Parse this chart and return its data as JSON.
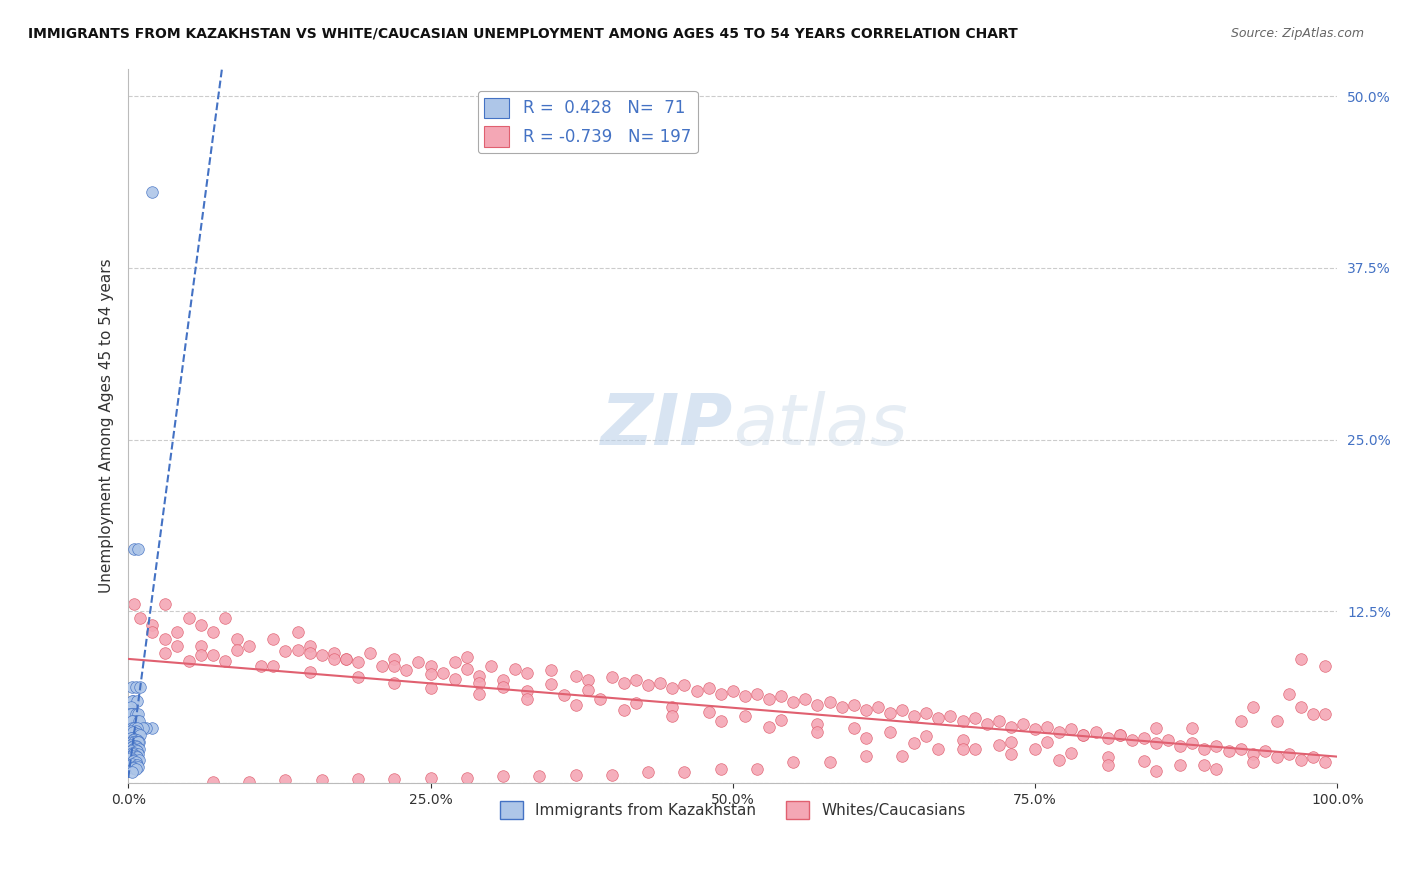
{
  "title": "IMMIGRANTS FROM KAZAKHSTAN VS WHITE/CAUCASIAN UNEMPLOYMENT AMONG AGES 45 TO 54 YEARS CORRELATION CHART",
  "source": "Source: ZipAtlas.com",
  "ylabel": "Unemployment Among Ages 45 to 54 years",
  "xlim": [
    0.0,
    1.0
  ],
  "ylim": [
    0.0,
    0.52
  ],
  "yticks": [
    0.0,
    0.125,
    0.25,
    0.375,
    0.5
  ],
  "xticks": [
    0.0,
    0.25,
    0.5,
    0.75,
    1.0
  ],
  "blue_scatter_x": [
    0.02,
    0.005,
    0.008,
    0.003,
    0.006,
    0.01,
    0.004,
    0.003,
    0.007,
    0.002,
    0.001,
    0.005,
    0.003,
    0.002,
    0.006,
    0.008,
    0.004,
    0.007,
    0.003,
    0.009,
    0.02,
    0.015,
    0.012,
    0.003,
    0.005,
    0.007,
    0.002,
    0.006,
    0.004,
    0.008,
    0.01,
    0.003,
    0.002,
    0.005,
    0.007,
    0.004,
    0.006,
    0.009,
    0.003,
    0.005,
    0.008,
    0.002,
    0.004,
    0.006,
    0.003,
    0.007,
    0.005,
    0.009,
    0.004,
    0.006,
    0.002,
    0.007,
    0.003,
    0.005,
    0.008,
    0.004,
    0.006,
    0.003,
    0.007,
    0.002,
    0.005,
    0.009,
    0.004,
    0.006,
    0.003,
    0.007,
    0.005,
    0.008,
    0.004,
    0.006,
    0.003
  ],
  "blue_scatter_y": [
    0.43,
    0.17,
    0.17,
    0.07,
    0.07,
    0.07,
    0.06,
    0.06,
    0.06,
    0.055,
    0.05,
    0.05,
    0.05,
    0.05,
    0.05,
    0.05,
    0.045,
    0.045,
    0.045,
    0.045,
    0.04,
    0.04,
    0.04,
    0.04,
    0.04,
    0.04,
    0.038,
    0.038,
    0.037,
    0.036,
    0.035,
    0.033,
    0.033,
    0.032,
    0.031,
    0.031,
    0.03,
    0.03,
    0.03,
    0.03,
    0.03,
    0.028,
    0.027,
    0.027,
    0.026,
    0.026,
    0.025,
    0.025,
    0.025,
    0.024,
    0.023,
    0.023,
    0.022,
    0.022,
    0.021,
    0.021,
    0.02,
    0.02,
    0.019,
    0.018,
    0.017,
    0.017,
    0.016,
    0.015,
    0.014,
    0.013,
    0.012,
    0.012,
    0.011,
    0.01,
    0.008
  ],
  "pink_scatter_x": [
    0.005,
    0.01,
    0.02,
    0.03,
    0.04,
    0.05,
    0.06,
    0.07,
    0.08,
    0.09,
    0.1,
    0.12,
    0.14,
    0.15,
    0.17,
    0.18,
    0.2,
    0.22,
    0.25,
    0.27,
    0.28,
    0.3,
    0.32,
    0.33,
    0.35,
    0.37,
    0.38,
    0.4,
    0.41,
    0.42,
    0.43,
    0.44,
    0.45,
    0.46,
    0.47,
    0.48,
    0.49,
    0.5,
    0.51,
    0.52,
    0.53,
    0.54,
    0.55,
    0.56,
    0.57,
    0.58,
    0.59,
    0.6,
    0.61,
    0.62,
    0.63,
    0.64,
    0.65,
    0.66,
    0.67,
    0.68,
    0.69,
    0.7,
    0.71,
    0.72,
    0.73,
    0.74,
    0.75,
    0.76,
    0.77,
    0.78,
    0.79,
    0.8,
    0.81,
    0.82,
    0.83,
    0.84,
    0.85,
    0.86,
    0.87,
    0.88,
    0.89,
    0.9,
    0.91,
    0.92,
    0.93,
    0.94,
    0.95,
    0.96,
    0.97,
    0.98,
    0.99,
    0.15,
    0.18,
    0.22,
    0.24,
    0.26,
    0.28,
    0.29,
    0.31,
    0.35,
    0.38,
    0.02,
    0.03,
    0.04,
    0.13,
    0.16,
    0.19,
    0.17,
    0.21,
    0.23,
    0.25,
    0.27,
    0.29,
    0.31,
    0.33,
    0.36,
    0.39,
    0.42,
    0.45,
    0.48,
    0.51,
    0.54,
    0.57,
    0.6,
    0.63,
    0.66,
    0.69,
    0.72,
    0.75,
    0.78,
    0.81,
    0.84,
    0.87,
    0.9,
    0.93,
    0.96,
    0.99,
    0.97,
    0.03,
    0.06,
    0.09,
    0.06,
    0.08,
    0.11,
    0.14,
    0.07,
    0.05,
    0.12,
    0.15,
    0.19,
    0.22,
    0.25,
    0.29,
    0.33,
    0.37,
    0.41,
    0.45,
    0.49,
    0.53,
    0.57,
    0.61,
    0.65,
    0.69,
    0.73,
    0.77,
    0.81,
    0.85,
    0.89,
    0.93,
    0.97,
    0.99,
    0.98,
    0.95,
    0.92,
    0.88,
    0.85,
    0.82,
    0.79,
    0.76,
    0.73,
    0.7,
    0.67,
    0.64,
    0.61,
    0.58,
    0.55,
    0.52,
    0.49,
    0.46,
    0.43,
    0.4,
    0.37,
    0.34,
    0.31,
    0.28,
    0.25,
    0.22,
    0.19,
    0.16,
    0.13,
    0.1,
    0.07
  ],
  "pink_scatter_y": [
    0.13,
    0.12,
    0.115,
    0.13,
    0.11,
    0.12,
    0.115,
    0.11,
    0.12,
    0.105,
    0.1,
    0.105,
    0.11,
    0.1,
    0.095,
    0.09,
    0.095,
    0.09,
    0.085,
    0.088,
    0.092,
    0.085,
    0.083,
    0.08,
    0.082,
    0.078,
    0.075,
    0.077,
    0.073,
    0.075,
    0.071,
    0.073,
    0.069,
    0.071,
    0.067,
    0.069,
    0.065,
    0.067,
    0.063,
    0.065,
    0.061,
    0.063,
    0.059,
    0.061,
    0.057,
    0.059,
    0.055,
    0.057,
    0.053,
    0.055,
    0.051,
    0.053,
    0.049,
    0.051,
    0.047,
    0.049,
    0.045,
    0.047,
    0.043,
    0.045,
    0.041,
    0.043,
    0.039,
    0.041,
    0.037,
    0.039,
    0.035,
    0.037,
    0.033,
    0.035,
    0.031,
    0.033,
    0.029,
    0.031,
    0.027,
    0.029,
    0.025,
    0.027,
    0.023,
    0.025,
    0.021,
    0.023,
    0.019,
    0.021,
    0.017,
    0.019,
    0.015,
    0.095,
    0.09,
    0.085,
    0.088,
    0.08,
    0.083,
    0.078,
    0.075,
    0.072,
    0.068,
    0.11,
    0.105,
    0.1,
    0.096,
    0.093,
    0.088,
    0.09,
    0.085,
    0.082,
    0.079,
    0.076,
    0.073,
    0.07,
    0.067,
    0.064,
    0.061,
    0.058,
    0.055,
    0.052,
    0.049,
    0.046,
    0.043,
    0.04,
    0.037,
    0.034,
    0.031,
    0.028,
    0.025,
    0.022,
    0.019,
    0.016,
    0.013,
    0.01,
    0.015,
    0.065,
    0.085,
    0.09,
    0.095,
    0.1,
    0.097,
    0.093,
    0.089,
    0.085,
    0.097,
    0.093,
    0.089,
    0.085,
    0.081,
    0.077,
    0.073,
    0.069,
    0.065,
    0.061,
    0.057,
    0.053,
    0.049,
    0.045,
    0.041,
    0.037,
    0.033,
    0.029,
    0.025,
    0.021,
    0.017,
    0.013,
    0.009,
    0.013,
    0.055,
    0.055,
    0.05,
    0.05,
    0.045,
    0.045,
    0.04,
    0.04,
    0.035,
    0.035,
    0.03,
    0.03,
    0.025,
    0.025,
    0.02,
    0.02,
    0.015,
    0.015,
    0.01,
    0.01,
    0.008,
    0.008,
    0.006,
    0.006,
    0.005,
    0.005,
    0.004,
    0.004,
    0.003,
    0.003,
    0.002,
    0.002,
    0.001,
    0.001
  ],
  "blue_color": "#aec6e8",
  "pink_color": "#f4a7b5",
  "blue_line_color": "#4472c4",
  "pink_line_color": "#e06070",
  "legend_R1": "0.428",
  "legend_N1": "71",
  "legend_R2": "-0.739",
  "legend_N2": "197",
  "watermark_zip": "ZIP",
  "watermark_atlas": "atlas",
  "legend_label1": "Immigrants from Kazakhstan",
  "legend_label2": "Whites/Caucasians",
  "background_color": "#ffffff",
  "grid_color": "#cccccc"
}
